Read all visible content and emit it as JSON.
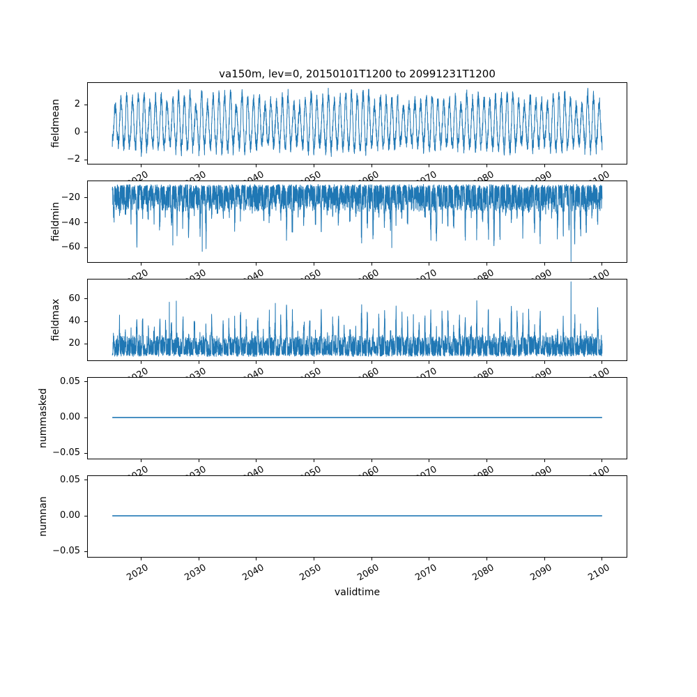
{
  "window": {
    "background": "#ffffff"
  },
  "chart_data": {
    "type": "line",
    "title": "va150m, lev=0, 20150101T1200 to 20991231T1200",
    "xlabel": "validtime",
    "line_color": "#1f77b4",
    "axis_color": "#000000",
    "grid": false,
    "legend": null,
    "x_range": [
      2010.75,
      2104.25
    ],
    "x_data_range": [
      2015.0,
      2100.0
    ],
    "x_ticks": [
      2020,
      2030,
      2040,
      2050,
      2060,
      2070,
      2080,
      2090,
      2100
    ],
    "x_tick_labels": [
      "2020",
      "2030",
      "2040",
      "2050",
      "2060",
      "2070",
      "2080",
      "2090",
      "2100"
    ],
    "x_tick_rotation_deg": 30,
    "panels": [
      {
        "id": "fieldmean",
        "ylabel": "fieldmean",
        "ylim": [
          -2.3,
          3.6
        ],
        "yticks": [
          2,
          0,
          -2
        ],
        "ytick_labels": [
          "2",
          "0",
          "−2"
        ],
        "series": {
          "gen": "seasonal",
          "summary": "noisy annual cycle, mean ~0.4, peaks to ~+3.2, troughs to ~-2.2",
          "base": 0.45,
          "amp_base": 1.3,
          "amp_rand": 0.95,
          "phase": 0.26,
          "up_scale": 1.1,
          "down_scale": 0.82,
          "noise": 0.5,
          "points_per_year": 48,
          "seed": 7,
          "clamp": [
            -2.28,
            3.45
          ],
          "stroke_width": 1.0,
          "forced": []
        }
      },
      {
        "id": "fieldmin",
        "ylabel": "fieldmin",
        "ylim": [
          -71.5,
          -6.8
        ],
        "yticks": [
          -20,
          -40,
          -60
        ],
        "ytick_labels": [
          "−20",
          "−40",
          "−60"
        ],
        "series": {
          "gen": "band",
          "summary": "dense band -10 to -35 with downward spikes to -45..-71",
          "edge": -10.5,
          "dir": -1,
          "band_rand": 20,
          "jitter": 1.2,
          "amp_base": 5,
          "amp_rand": 28,
          "peak_pow": 7,
          "phase": 0.0,
          "points_per_year": 48,
          "seed": 13,
          "clamp": [
            -71.2,
            -7.2
          ],
          "stroke_width": 1.0,
          "forced": [
            [
              2025.5,
              -58
            ],
            [
              2030.6,
              -63
            ],
            [
              2063.5,
              -60
            ],
            [
              2094.6,
              -71
            ]
          ]
        }
      },
      {
        "id": "fieldmax",
        "ylabel": "fieldmax",
        "ylim": [
          5.5,
          77
        ],
        "yticks": [
          60,
          40,
          20
        ],
        "ytick_labels": [
          "60",
          "40",
          "20"
        ],
        "series": {
          "gen": "band",
          "summary": "dense band 10 to 32 with upward spikes to 40..75",
          "edge": 10,
          "dir": 1,
          "band_rand": 17,
          "jitter": 1.2,
          "amp_base": 6,
          "amp_rand": 28,
          "peak_pow": 7,
          "phase": 0.0,
          "points_per_year": 48,
          "seed": 29,
          "clamp": [
            5.8,
            76
          ],
          "stroke_width": 1.0,
          "forced": [
            [
              2024.9,
              57
            ],
            [
              2026.1,
              58
            ],
            [
              2043.3,
              56
            ],
            [
              2094.6,
              75
            ]
          ]
        }
      },
      {
        "id": "nummasked",
        "ylabel": "nummasked",
        "ylim": [
          -0.0577,
          0.0558
        ],
        "yticks": [
          0.05,
          0.0,
          -0.05
        ],
        "ytick_labels": [
          "0.05",
          "0.00",
          "−0.05"
        ],
        "series": {
          "gen": "constant",
          "summary": "constant 0 over full period",
          "value": 0.0,
          "seed": 0,
          "clamp": [
            -0.05,
            0.05
          ],
          "stroke_width": 1.6,
          "forced": []
        }
      },
      {
        "id": "numnan",
        "ylabel": "numnan",
        "ylim": [
          -0.0577,
          0.0558
        ],
        "yticks": [
          0.05,
          0.0,
          -0.05
        ],
        "ytick_labels": [
          "0.05",
          "0.00",
          "−0.05"
        ],
        "series": {
          "gen": "constant",
          "summary": "constant 0 over full period",
          "value": 0.0,
          "seed": 0,
          "clamp": [
            -0.05,
            0.05
          ],
          "stroke_width": 1.6,
          "forced": []
        }
      }
    ]
  }
}
